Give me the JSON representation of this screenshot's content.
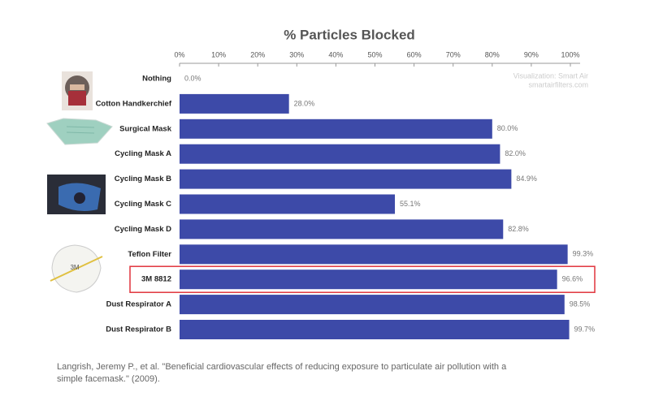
{
  "chart_data": {
    "type": "bar",
    "orientation": "horizontal",
    "title": "% Particles Blocked",
    "categories": [
      "Nothing",
      "Cotton Handkerchief",
      "Surgical Mask",
      "Cycling Mask A",
      "Cycling Mask B",
      "Cycling Mask C",
      "Cycling Mask D",
      "Teflon Filter",
      "3M 8812",
      "Dust Respirator A",
      "Dust Respirator B"
    ],
    "values": [
      0.0,
      28.0,
      80.0,
      82.0,
      84.9,
      55.1,
      82.8,
      99.3,
      96.6,
      98.5,
      99.7
    ],
    "value_labels": [
      "0.0%",
      "28.0%",
      "80.0%",
      "82.0%",
      "84.9%",
      "55.1%",
      "82.8%",
      "99.3%",
      "96.6%",
      "98.5%",
      "99.7%"
    ],
    "color": "#3d4aa8",
    "xlim": [
      0,
      100
    ],
    "xticks": [
      {
        "value": 0,
        "label": "0%"
      },
      {
        "value": 10,
        "label": "10%"
      },
      {
        "value": 20,
        "label": "20%"
      },
      {
        "value": 30,
        "label": "30%"
      },
      {
        "value": 40,
        "label": "40%"
      },
      {
        "value": 50,
        "label": "50%"
      },
      {
        "value": 60,
        "label": "60%"
      },
      {
        "value": 70,
        "label": "70%"
      },
      {
        "value": 80,
        "label": "80%"
      },
      {
        "value": 90,
        "label": "90%"
      },
      {
        "value": 100,
        "label": "100%"
      }
    ],
    "grid": false,
    "highlight_index": 8,
    "highlight_color": "#e0343c",
    "watermark": [
      "Visualization: Smart Air",
      "smartairfilters.com"
    ],
    "citation": [
      "Langrish, Jeremy P., et al. \"Beneficial cardiovascular effects of reducing exposure to particulate air pollution with a",
      "simple facemask.\" (2009)."
    ]
  }
}
